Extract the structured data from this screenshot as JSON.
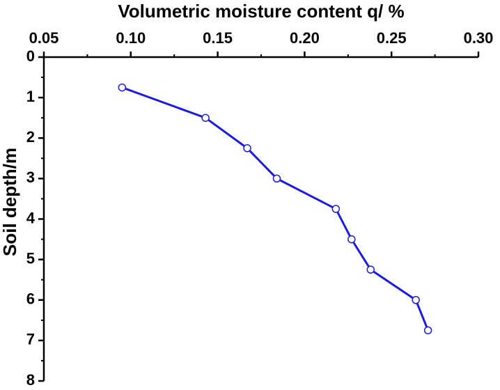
{
  "chart_data": {
    "type": "line",
    "x_label": "Volumetric moisture content q/ %",
    "y_label": "Soil depth/m",
    "x": [
      0.095,
      0.143,
      0.167,
      0.184,
      0.218,
      0.227,
      0.238,
      0.264,
      0.271
    ],
    "values": [
      0.75,
      1.5,
      2.25,
      3.0,
      3.75,
      4.5,
      5.25,
      6.0,
      6.75
    ],
    "color": "#1a1ae6",
    "xlim": [
      0.05,
      0.3
    ],
    "xticks": [
      0.05,
      {
        "value": 0.1,
        "label": "0.10"
      },
      0.15,
      {
        "value": 0.2,
        "label": "0.20"
      },
      0.25,
      {
        "value": 0.3,
        "label": "0.30"
      }
    ],
    "ylim": [
      0,
      8
    ],
    "yticks": [
      0,
      1,
      2,
      3,
      4,
      5,
      6,
      7,
      8
    ],
    "y_inverted": true,
    "x_axis_position": "top"
  }
}
